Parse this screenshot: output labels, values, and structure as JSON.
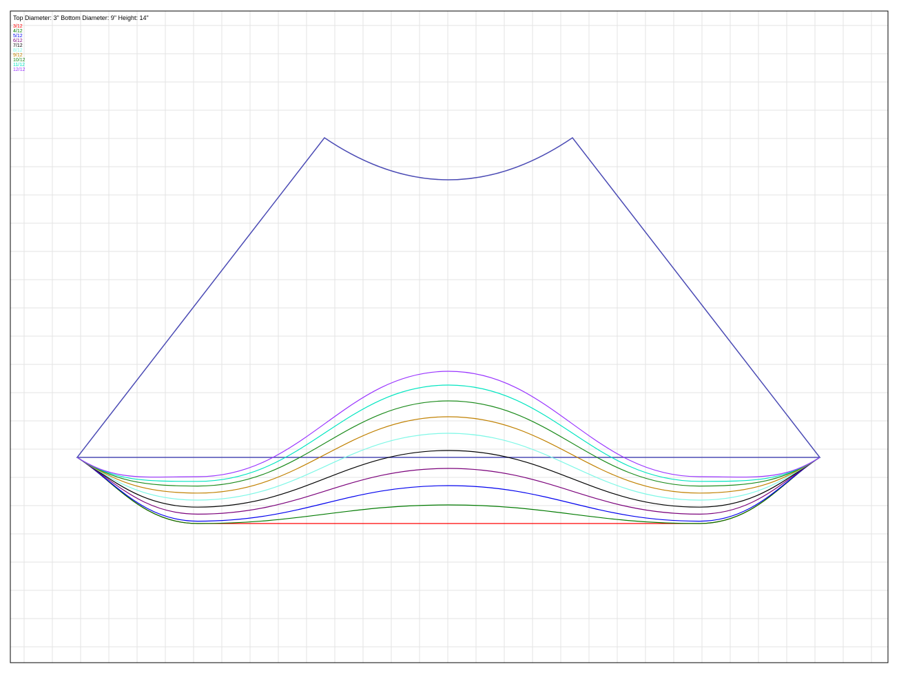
{
  "title": "Top Diameter: 3\" Bottom Diameter: 9\"  Height: 14\"",
  "chart_data": {
    "type": "diagram",
    "description_label": "cone flat pattern with pitch cut curves",
    "grid": true,
    "outline_color": "#4a4ab4",
    "legend": [
      {
        "label": "3/12",
        "color": "#ff0000"
      },
      {
        "label": "4/12",
        "color": "#007a00"
      },
      {
        "label": "5/12",
        "color": "#0000ee"
      },
      {
        "label": "6/12",
        "color": "#7a007a"
      },
      {
        "label": "7/12",
        "color": "#000000"
      },
      {
        "label": "8/12",
        "color": "#7ef7e6"
      },
      {
        "label": "9/12",
        "color": "#c08000"
      },
      {
        "label": "10/12",
        "color": "#1a8a1a"
      },
      {
        "label": "11/12",
        "color": "#00e5c0"
      },
      {
        "label": "12/12",
        "color": "#9933ff"
      }
    ],
    "curve_center_depth": [
      760,
      733,
      705,
      680,
      654,
      629,
      605,
      582,
      559,
      539
    ],
    "curve_edge_trough": [
      0,
      0,
      0.05,
      0.2,
      0.35,
      0.5,
      0.65,
      0.8,
      0.9,
      1.0
    ]
  }
}
